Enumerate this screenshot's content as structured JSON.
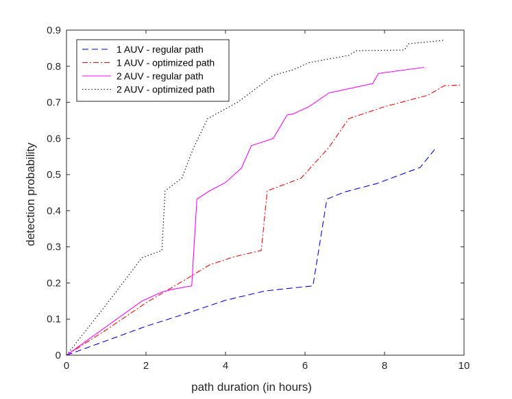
{
  "chart_data": {
    "type": "line",
    "title": "",
    "xlabel": "path duration (in hours)",
    "ylabel": "detection probability",
    "xlim": [
      0,
      10
    ],
    "ylim": [
      0,
      0.9
    ],
    "xticks": [
      0,
      2,
      4,
      6,
      8,
      10
    ],
    "yticks": [
      0,
      0.1,
      0.2,
      0.3,
      0.4,
      0.5,
      0.6,
      0.7,
      0.8,
      0.9
    ],
    "xtick_labels": [
      "0",
      "2",
      "4",
      "6",
      "8",
      "10"
    ],
    "ytick_labels": [
      "0",
      "0.1",
      "0.2",
      "0.3",
      "0.4",
      "0.5",
      "0.6",
      "0.7",
      "0.8",
      "0.9"
    ],
    "grid": false,
    "legend_position": "top-left",
    "series": [
      {
        "name": "1 AUV - regular path",
        "color": "#0000ff",
        "dash": "dashed",
        "points": [
          [
            0,
            0
          ],
          [
            1,
            0.04
          ],
          [
            2,
            0.08
          ],
          [
            3,
            0.115
          ],
          [
            4,
            0.152
          ],
          [
            5,
            0.178
          ],
          [
            6.2,
            0.192
          ],
          [
            6.55,
            0.432
          ],
          [
            7,
            0.452
          ],
          [
            7.8,
            0.475
          ],
          [
            8.9,
            0.52
          ],
          [
            9.3,
            0.575
          ]
        ]
      },
      {
        "name": "1 AUV - optimized path",
        "color": "#ff0000",
        "dash": "dashdot",
        "points": [
          [
            0,
            0
          ],
          [
            1,
            0.07
          ],
          [
            2,
            0.145
          ],
          [
            3,
            0.21
          ],
          [
            3.6,
            0.25
          ],
          [
            4.2,
            0.272
          ],
          [
            4.9,
            0.29
          ],
          [
            5.05,
            0.455
          ],
          [
            5.9,
            0.49
          ],
          [
            6.6,
            0.575
          ],
          [
            7.1,
            0.655
          ],
          [
            8,
            0.688
          ],
          [
            9.1,
            0.72
          ],
          [
            9.5,
            0.746
          ],
          [
            9.9,
            0.748
          ]
        ]
      },
      {
        "name": "2 AUV - regular path",
        "color": "#ff00ff",
        "dash": "solid",
        "points": [
          [
            0,
            0
          ],
          [
            1.9,
            0.15
          ],
          [
            2.4,
            0.175
          ],
          [
            2.7,
            0.183
          ],
          [
            3.15,
            0.192
          ],
          [
            3.28,
            0.432
          ],
          [
            3.6,
            0.455
          ],
          [
            4,
            0.478
          ],
          [
            4.4,
            0.518
          ],
          [
            4.65,
            0.58
          ],
          [
            5.2,
            0.6
          ],
          [
            5.55,
            0.665
          ],
          [
            5.7,
            0.668
          ],
          [
            6.1,
            0.688
          ],
          [
            6.6,
            0.726
          ],
          [
            7.7,
            0.752
          ],
          [
            7.85,
            0.78
          ],
          [
            9,
            0.797
          ]
        ]
      },
      {
        "name": "2 AUV - optimized path",
        "color": "#000000",
        "dash": "dotted",
        "points": [
          [
            0,
            0
          ],
          [
            1,
            0.14
          ],
          [
            1.9,
            0.27
          ],
          [
            2.4,
            0.29
          ],
          [
            2.48,
            0.455
          ],
          [
            2.9,
            0.49
          ],
          [
            3.2,
            0.575
          ],
          [
            3.55,
            0.655
          ],
          [
            4.3,
            0.7
          ],
          [
            4.85,
            0.745
          ],
          [
            5.2,
            0.775
          ],
          [
            5.7,
            0.79
          ],
          [
            6.1,
            0.81
          ],
          [
            7.1,
            0.83
          ],
          [
            7.3,
            0.843
          ],
          [
            8.5,
            0.845
          ],
          [
            8.6,
            0.862
          ],
          [
            9.5,
            0.872
          ]
        ]
      }
    ]
  }
}
